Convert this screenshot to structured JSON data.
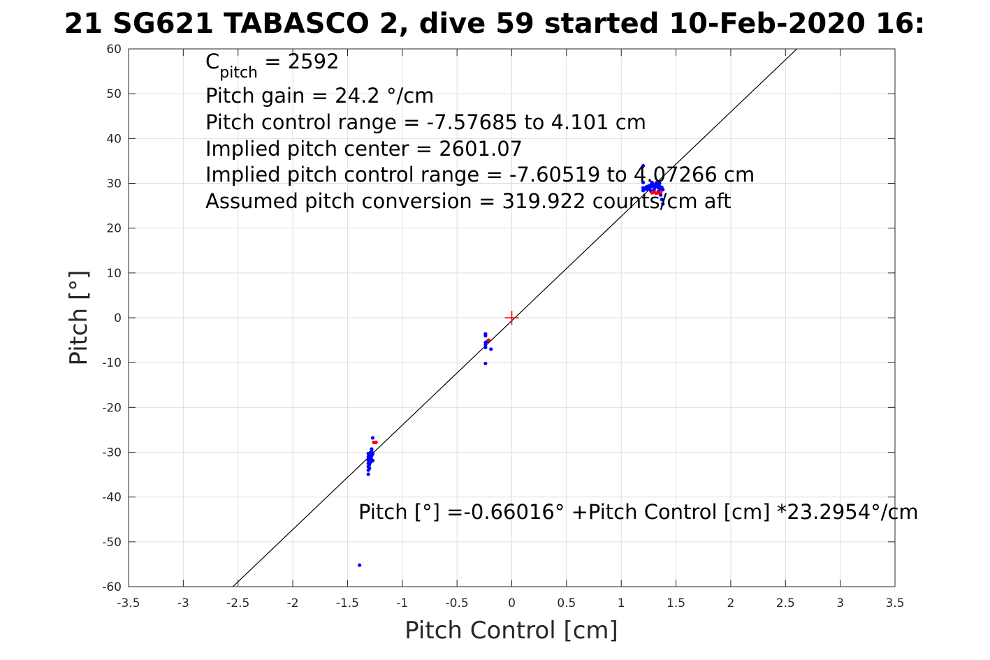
{
  "chart_data": {
    "type": "scatter",
    "title": "21 SG621 TABASCO 2, dive 59 started 10-Feb-2020 16:",
    "xlabel": "Pitch Control [cm]",
    "ylabel": "Pitch [°]",
    "xlim": [
      -3.5,
      3.5
    ],
    "ylim": [
      -60,
      60
    ],
    "xticks": [
      -3.5,
      -3,
      -2.5,
      -2,
      -1.5,
      -1,
      -0.5,
      0,
      0.5,
      1,
      1.5,
      2,
      2.5,
      3,
      3.5
    ],
    "xtick_labels": [
      "-3.5",
      "-3",
      "-2.5",
      "-2",
      "-1.5",
      "-1",
      "-0.5",
      "0",
      "0.5",
      "1",
      "1.5",
      "2",
      "2.5",
      "3",
      "3.5"
    ],
    "yticks": [
      -60,
      -50,
      -40,
      -30,
      -20,
      -10,
      0,
      10,
      20,
      30,
      40,
      50,
      60
    ],
    "ytick_labels": [
      "-60",
      "-50",
      "-40",
      "-30",
      "-20",
      "-10",
      "0",
      "10",
      "20",
      "30",
      "40",
      "50",
      "60"
    ],
    "grid": true,
    "colors": {
      "blue_points": "#0000ff",
      "red_points": "#ff0000",
      "fit_line": "#000000",
      "grid": "#dfdfdf",
      "axes": "#262626"
    },
    "fit_line": {
      "intercept": -0.66016,
      "slope": 23.2954
    },
    "center_marker": {
      "x": 0,
      "y": 0,
      "color": "#ff0000"
    },
    "series_blue": [
      [
        -1.39,
        -55.2
      ],
      [
        -1.31,
        -34.9
      ],
      [
        -1.31,
        -34.0
      ],
      [
        -1.31,
        -33.2
      ],
      [
        -1.31,
        -32.5
      ],
      [
        -1.31,
        -31.8
      ],
      [
        -1.31,
        -31.0
      ],
      [
        -1.31,
        -30.3
      ],
      [
        -1.3,
        -33.6
      ],
      [
        -1.3,
        -32.8
      ],
      [
        -1.3,
        -31.4
      ],
      [
        -1.3,
        -30.6
      ],
      [
        -1.29,
        -32.2
      ],
      [
        -1.29,
        -31.2
      ],
      [
        -1.29,
        -30.1
      ],
      [
        -1.28,
        -31.6
      ],
      [
        -1.28,
        -30.8
      ],
      [
        -1.28,
        -29.8
      ],
      [
        -1.28,
        -29.3
      ],
      [
        -1.27,
        -31.9
      ],
      [
        -1.27,
        -30.4
      ],
      [
        -1.27,
        -26.8
      ],
      [
        -0.24,
        -3.6
      ],
      [
        -0.24,
        -4.0
      ],
      [
        -0.24,
        -5.5
      ],
      [
        -0.24,
        -6.0
      ],
      [
        -0.24,
        -6.6
      ],
      [
        -0.24,
        -10.2
      ],
      [
        -0.22,
        -5.2
      ],
      [
        -0.19,
        -7.0
      ],
      [
        1.2,
        33.9
      ],
      [
        1.2,
        30.2
      ],
      [
        1.2,
        29.0
      ],
      [
        1.2,
        28.4
      ],
      [
        1.21,
        28.6
      ],
      [
        1.22,
        28.9
      ],
      [
        1.23,
        29.2
      ],
      [
        1.24,
        29.0
      ],
      [
        1.25,
        29.4
      ],
      [
        1.26,
        29.1
      ],
      [
        1.27,
        29.6
      ],
      [
        1.28,
        29.3
      ],
      [
        1.29,
        29.8
      ],
      [
        1.3,
        29.5
      ],
      [
        1.31,
        29.2
      ],
      [
        1.32,
        29.7
      ],
      [
        1.33,
        29.4
      ],
      [
        1.34,
        29.0
      ],
      [
        1.35,
        29.3
      ],
      [
        1.36,
        28.8
      ],
      [
        1.37,
        29.1
      ],
      [
        1.38,
        28.6
      ],
      [
        1.36,
        27.4
      ],
      [
        1.37,
        26.4
      ],
      [
        1.38,
        25.4
      ],
      [
        1.34,
        28.2
      ],
      [
        1.3,
        28.6
      ],
      [
        1.27,
        28.3
      ],
      [
        1.24,
        28.7
      ],
      [
        1.32,
        30.1
      ],
      [
        1.28,
        30.2
      ],
      [
        1.35,
        30.0
      ]
    ],
    "series_red": [
      [
        -1.26,
        -27.8
      ],
      [
        -1.24,
        -27.8
      ],
      [
        -0.21,
        -5.0
      ],
      [
        1.28,
        27.9
      ],
      [
        1.3,
        28.0
      ],
      [
        1.32,
        27.8
      ],
      [
        1.34,
        27.9
      ],
      [
        1.36,
        28.0
      ]
    ]
  },
  "annotations": {
    "c_pitch_main": "C",
    "c_pitch_sub": "pitch",
    "c_pitch_value": " = 2592",
    "pitch_gain": "Pitch gain = 24.2 °/cm",
    "pitch_control_range": "Pitch control range = -7.57685 to 4.101 cm",
    "implied_center": "Implied pitch center = 2601.07",
    "implied_range": "Implied pitch control range = -7.60519 to 4.07266 cm",
    "assumed_conversion": "Assumed pitch conversion = 319.922 counts/cm aft",
    "fit_equation": "Pitch [°] =-0.66016° +Pitch Control [cm] *23.2954°/cm"
  }
}
